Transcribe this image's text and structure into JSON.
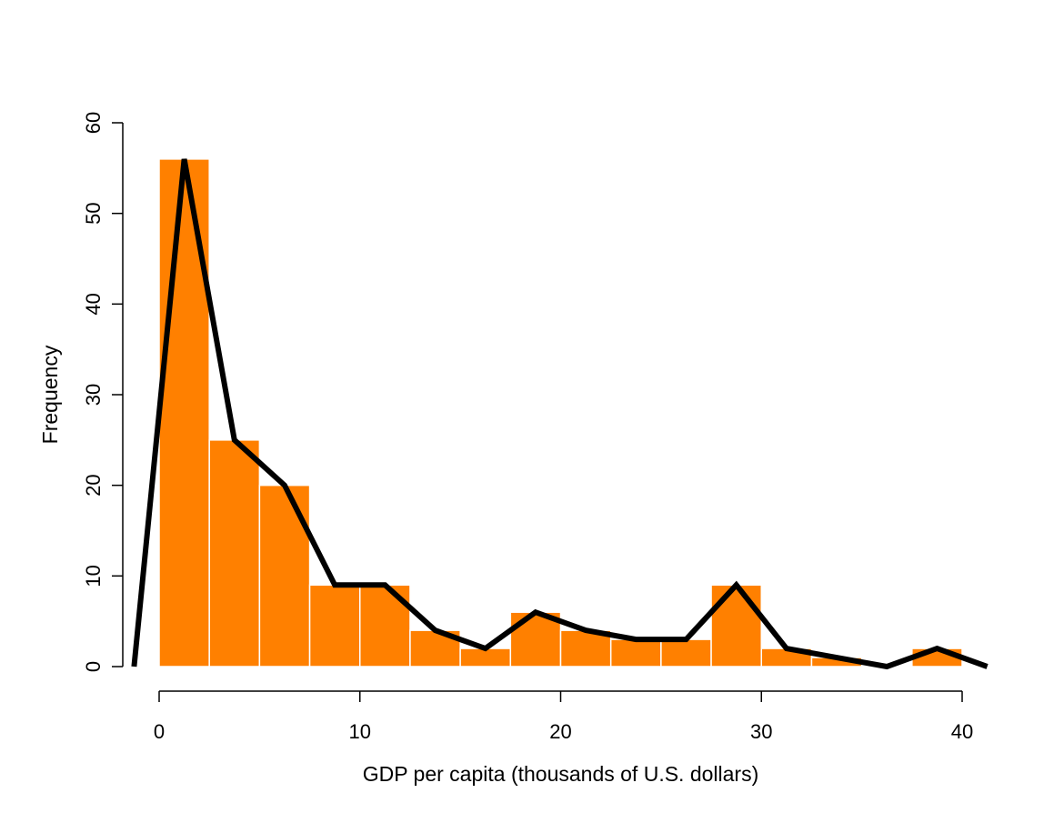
{
  "chart_data": {
    "type": "bar",
    "title": "",
    "xlabel": "GDP per capita (thousands of U.S. dollars)",
    "ylabel": "Frequency",
    "bin_edges": [
      0,
      2.5,
      5,
      7.5,
      10,
      12.5,
      15,
      17.5,
      20,
      22.5,
      25,
      27.5,
      30,
      32.5,
      35,
      37.5,
      40
    ],
    "values": [
      56,
      25,
      20,
      9,
      9,
      4,
      2,
      6,
      4,
      3,
      3,
      9,
      2,
      1,
      0,
      2
    ],
    "polygon": {
      "x": [
        -1.25,
        1.25,
        3.75,
        6.25,
        8.75,
        11.25,
        13.75,
        16.25,
        18.75,
        21.25,
        23.75,
        26.25,
        28.75,
        31.25,
        33.75,
        36.25,
        38.75,
        41.25
      ],
      "y": [
        0,
        56,
        25,
        20,
        9,
        9,
        4,
        2,
        6,
        4,
        3,
        3,
        9,
        2,
        1,
        0,
        2,
        0
      ]
    },
    "xticks": [
      "0",
      "10",
      "20",
      "30",
      "40"
    ],
    "yticks": [
      "0",
      "10",
      "20",
      "30",
      "40",
      "50",
      "60"
    ],
    "xlim": [
      0,
      40
    ],
    "ylim": [
      0,
      60
    ],
    "grid": false,
    "colors": {
      "bar_fill": "#ff8000",
      "bar_border": "#ffffff",
      "polygon_line": "#000000"
    }
  }
}
